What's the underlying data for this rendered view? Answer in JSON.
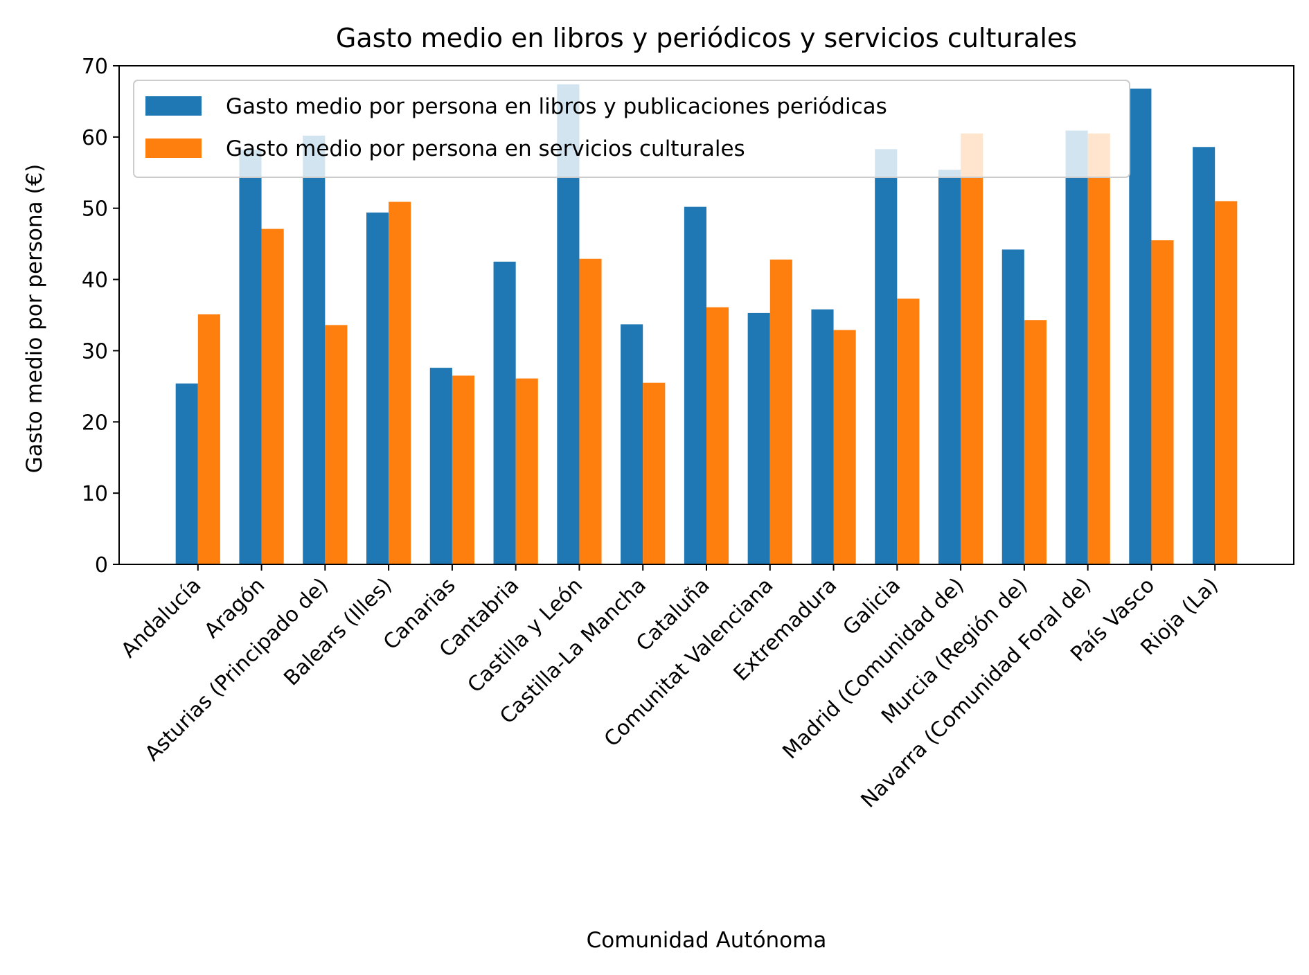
{
  "chart_data": {
    "type": "bar",
    "title": "Gasto medio en libros y periódicos y servicios culturales",
    "xlabel": "Comunidad Autónoma",
    "ylabel": "Gasto medio por persona (€)",
    "ylim": [
      0,
      70
    ],
    "yticks": [
      "0",
      "10",
      "20",
      "30",
      "40",
      "50",
      "60",
      "70"
    ],
    "grid": false,
    "legend_position": "top-left",
    "categories": [
      "Andalucía",
      "Aragón",
      "Asturias (Principado de)",
      "Balears (Illes)",
      "Canarias",
      "Cantabria",
      "Castilla y León",
      "Castilla-La Mancha",
      "Cataluña",
      "Comunitat Valenciana",
      "Extremadura",
      "Galicia",
      "Madrid (Comunidad de)",
      "Murcia (Región de)",
      "Navarra (Comunidad Foral de)",
      "País Vasco",
      "Rioja (La)"
    ],
    "series": [
      {
        "name": "Gasto medio por persona en libros y publicaciones periódicas",
        "color": "#1f77b4",
        "values": [
          25.4,
          58.2,
          60.2,
          49.4,
          27.6,
          42.5,
          67.4,
          33.7,
          50.2,
          35.3,
          35.8,
          58.3,
          55.4,
          44.2,
          60.9,
          66.8,
          58.6
        ]
      },
      {
        "name": "Gasto medio por persona en servicios culturales",
        "color": "#ff7f0e",
        "values": [
          35.1,
          47.1,
          33.6,
          50.9,
          26.5,
          26.1,
          42.9,
          25.5,
          36.1,
          42.8,
          32.9,
          37.3,
          60.5,
          34.3,
          60.5,
          45.5,
          51.0
        ]
      }
    ]
  }
}
